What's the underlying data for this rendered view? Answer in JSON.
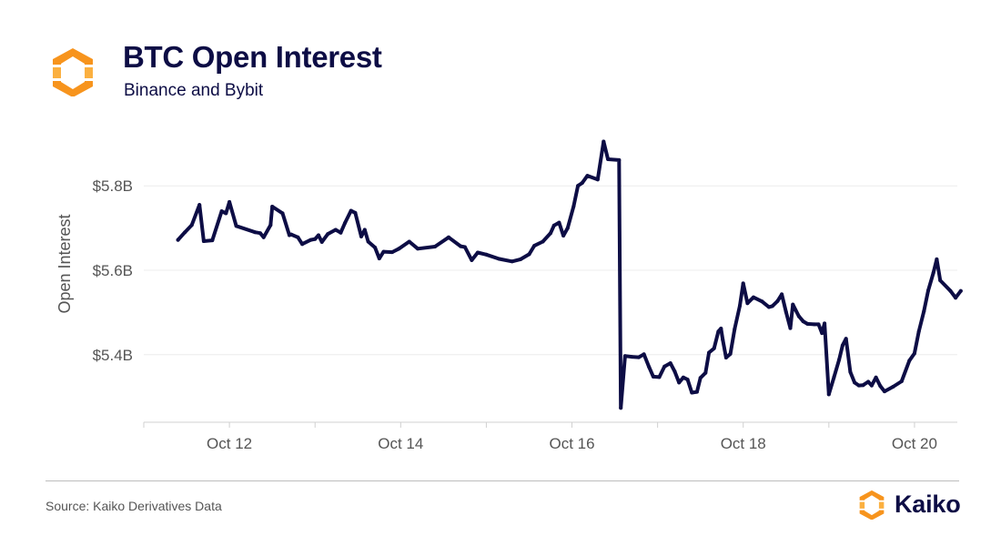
{
  "header": {
    "title": "BTC Open Interest",
    "subtitle": "Binance and Bybit"
  },
  "footer": {
    "source": "Source: Kaiko Derivatives Data",
    "brand_name": "Kaiko",
    "logo_icon": "kaiko-logo-icon"
  },
  "colors": {
    "line": "#0d0d45",
    "title": "#0d0d45",
    "logo_orange": "#f7941d",
    "logo_light": "#fbb040"
  },
  "chart_data": {
    "type": "line",
    "title": "BTC Open Interest",
    "subtitle": "Binance and Bybit",
    "xlabel": "",
    "ylabel": "Open Interest",
    "x_tick_labels": [
      "Oct 12",
      "Oct 14",
      "Oct 16",
      "Oct 18",
      "Oct 20"
    ],
    "x_tick_days": [
      12,
      14,
      16,
      18,
      20
    ],
    "y_tick_labels": [
      "$5.4B",
      "$5.6B",
      "$5.8B"
    ],
    "y_tick_values": [
      5.4,
      5.6,
      5.8
    ],
    "xlim": [
      11.0,
      20.5
    ],
    "ylim": [
      5.24,
      5.96
    ],
    "grid": "horizontal",
    "legend": "none",
    "x_unit": "day of October",
    "y_unit": "billion USD",
    "series": [
      {
        "values": [
          [
            11.4,
            5.672
          ],
          [
            11.48,
            5.69
          ],
          [
            11.56,
            5.707
          ],
          [
            11.65,
            5.755
          ],
          [
            11.7,
            5.669
          ],
          [
            11.8,
            5.671
          ],
          [
            11.91,
            5.74
          ],
          [
            11.96,
            5.735
          ],
          [
            12.0,
            5.762
          ],
          [
            12.08,
            5.705
          ],
          [
            12.3,
            5.69
          ],
          [
            12.36,
            5.688
          ],
          [
            12.4,
            5.678
          ],
          [
            12.48,
            5.707
          ],
          [
            12.5,
            5.751
          ],
          [
            12.62,
            5.735
          ],
          [
            12.7,
            5.683
          ],
          [
            12.72,
            5.685
          ],
          [
            12.8,
            5.678
          ],
          [
            12.85,
            5.662
          ],
          [
            12.95,
            5.672
          ],
          [
            13.0,
            5.674
          ],
          [
            13.04,
            5.683
          ],
          [
            13.08,
            5.667
          ],
          [
            13.15,
            5.686
          ],
          [
            13.24,
            5.696
          ],
          [
            13.3,
            5.689
          ],
          [
            13.35,
            5.712
          ],
          [
            13.42,
            5.741
          ],
          [
            13.47,
            5.736
          ],
          [
            13.54,
            5.68
          ],
          [
            13.58,
            5.696
          ],
          [
            13.62,
            5.668
          ],
          [
            13.7,
            5.654
          ],
          [
            13.75,
            5.628
          ],
          [
            13.8,
            5.644
          ],
          [
            13.9,
            5.643
          ],
          [
            13.98,
            5.651
          ],
          [
            14.1,
            5.668
          ],
          [
            14.2,
            5.651
          ],
          [
            14.4,
            5.656
          ],
          [
            14.56,
            5.678
          ],
          [
            14.7,
            5.657
          ],
          [
            14.75,
            5.655
          ],
          [
            14.83,
            5.624
          ],
          [
            14.9,
            5.642
          ],
          [
            15.0,
            5.637
          ],
          [
            15.15,
            5.627
          ],
          [
            15.3,
            5.621
          ],
          [
            15.4,
            5.626
          ],
          [
            15.5,
            5.638
          ],
          [
            15.56,
            5.658
          ],
          [
            15.66,
            5.668
          ],
          [
            15.75,
            5.688
          ],
          [
            15.79,
            5.706
          ],
          [
            15.85,
            5.713
          ],
          [
            15.9,
            5.682
          ],
          [
            15.95,
            5.7
          ],
          [
            16.02,
            5.752
          ],
          [
            16.07,
            5.8
          ],
          [
            16.12,
            5.807
          ],
          [
            16.18,
            5.824
          ],
          [
            16.3,
            5.815
          ],
          [
            16.37,
            5.905
          ],
          [
            16.42,
            5.863
          ],
          [
            16.55,
            5.861
          ],
          [
            16.57,
            5.274
          ],
          [
            16.62,
            5.397
          ],
          [
            16.7,
            5.395
          ],
          [
            16.78,
            5.394
          ],
          [
            16.84,
            5.401
          ],
          [
            16.9,
            5.371
          ],
          [
            16.95,
            5.348
          ],
          [
            17.02,
            5.347
          ],
          [
            17.08,
            5.372
          ],
          [
            17.15,
            5.38
          ],
          [
            17.2,
            5.36
          ],
          [
            17.25,
            5.334
          ],
          [
            17.3,
            5.346
          ],
          [
            17.35,
            5.341
          ],
          [
            17.4,
            5.31
          ],
          [
            17.46,
            5.312
          ],
          [
            17.5,
            5.345
          ],
          [
            17.56,
            5.357
          ],
          [
            17.6,
            5.405
          ],
          [
            17.66,
            5.415
          ],
          [
            17.71,
            5.455
          ],
          [
            17.74,
            5.462
          ],
          [
            17.76,
            5.436
          ],
          [
            17.8,
            5.393
          ],
          [
            17.85,
            5.402
          ],
          [
            17.9,
            5.461
          ],
          [
            17.96,
            5.516
          ],
          [
            18.0,
            5.569
          ],
          [
            18.05,
            5.522
          ],
          [
            18.12,
            5.536
          ],
          [
            18.22,
            5.526
          ],
          [
            18.3,
            5.513
          ],
          [
            18.34,
            5.515
          ],
          [
            18.4,
            5.527
          ],
          [
            18.45,
            5.543
          ],
          [
            18.5,
            5.501
          ],
          [
            18.55,
            5.463
          ],
          [
            18.58,
            5.519
          ],
          [
            18.65,
            5.491
          ],
          [
            18.7,
            5.479
          ],
          [
            18.75,
            5.473
          ],
          [
            18.83,
            5.472
          ],
          [
            18.88,
            5.472
          ],
          [
            18.92,
            5.451
          ],
          [
            18.95,
            5.474
          ],
          [
            19.0,
            5.306
          ],
          [
            19.06,
            5.347
          ],
          [
            19.12,
            5.388
          ],
          [
            19.16,
            5.422
          ],
          [
            19.2,
            5.438
          ],
          [
            19.25,
            5.359
          ],
          [
            19.3,
            5.334
          ],
          [
            19.35,
            5.327
          ],
          [
            19.4,
            5.328
          ],
          [
            19.46,
            5.336
          ],
          [
            19.5,
            5.327
          ],
          [
            19.55,
            5.346
          ],
          [
            19.6,
            5.326
          ],
          [
            19.65,
            5.313
          ],
          [
            19.75,
            5.324
          ],
          [
            19.85,
            5.337
          ],
          [
            19.94,
            5.386
          ],
          [
            20.0,
            5.403
          ],
          [
            20.05,
            5.455
          ],
          [
            20.11,
            5.503
          ],
          [
            20.16,
            5.552
          ],
          [
            20.22,
            5.594
          ],
          [
            20.26,
            5.626
          ],
          [
            20.3,
            5.576
          ],
          [
            20.42,
            5.551
          ],
          [
            20.48,
            5.535
          ],
          [
            20.54,
            5.551
          ]
        ]
      }
    ]
  }
}
